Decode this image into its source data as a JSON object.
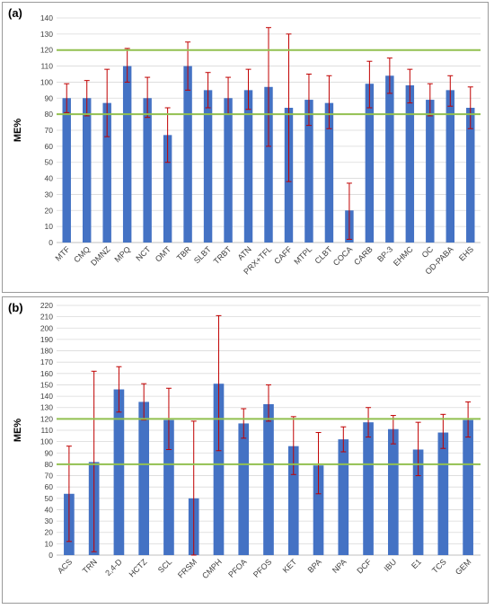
{
  "chart_data": [
    {
      "type": "bar",
      "panel_label": "(a)",
      "ylabel": "ME%",
      "ylim": [
        0,
        140
      ],
      "ytick_step": 10,
      "reference_lines": [
        80,
        120
      ],
      "categories": [
        "MTF",
        "CMQ",
        "DMNZ",
        "MPQ",
        "NCT",
        "OMT",
        "TBR",
        "SLBT",
        "TRBT",
        "ATN",
        "PRX+TFL",
        "CAFF",
        "MTPL",
        "CLBT",
        "COCA",
        "CARB",
        "BP-3",
        "EHMC",
        "OC",
        "OD-PABA",
        "EHS"
      ],
      "values": [
        90,
        90,
        87,
        110,
        90,
        67,
        110,
        95,
        90,
        95,
        97,
        84,
        89,
        87,
        20,
        99,
        104,
        98,
        89,
        95,
        84
      ],
      "error_bars": [
        [
          81,
          99
        ],
        [
          79,
          101
        ],
        [
          66,
          108
        ],
        [
          100,
          121
        ],
        [
          78,
          103
        ],
        [
          50,
          84
        ],
        [
          95,
          125
        ],
        [
          84,
          106
        ],
        [
          80,
          103
        ],
        [
          83,
          108
        ],
        [
          60,
          134
        ],
        [
          38,
          130
        ],
        [
          73,
          105
        ],
        [
          71,
          104
        ],
        [
          2,
          37
        ],
        [
          84,
          113
        ],
        [
          93,
          115
        ],
        [
          87,
          108
        ],
        [
          79,
          99
        ],
        [
          85,
          104
        ],
        [
          71,
          97
        ]
      ]
    },
    {
      "type": "bar",
      "panel_label": "(b)",
      "ylabel": "ME%",
      "ylim": [
        0,
        220
      ],
      "ytick_step": 10,
      "reference_lines": [
        80,
        120
      ],
      "categories": [
        "ACS",
        "TRN",
        "2,4-D",
        "HCTZ",
        "SCL",
        "FRSM",
        "CMPH",
        "PFOA",
        "PFOS",
        "KET",
        "BPA",
        "NPA",
        "DCF",
        "IBU",
        "E1",
        "TCS",
        "GEM"
      ],
      "values": [
        54,
        82,
        146,
        135,
        119,
        50,
        151,
        116,
        133,
        96,
        79,
        102,
        117,
        111,
        93,
        108,
        119
      ],
      "error_bars": [
        [
          12,
          96
        ],
        [
          3,
          162
        ],
        [
          126,
          166
        ],
        [
          119,
          151
        ],
        [
          93,
          147
        ],
        [
          0,
          118
        ],
        [
          92,
          211
        ],
        [
          103,
          129
        ],
        [
          118,
          150
        ],
        [
          71,
          122
        ],
        [
          54,
          108
        ],
        [
          91,
          113
        ],
        [
          104,
          130
        ],
        [
          98,
          123
        ],
        [
          70,
          117
        ],
        [
          94,
          124
        ],
        [
          104,
          135
        ]
      ]
    }
  ],
  "colors": {
    "bar": "#4472c4",
    "error_bar": "#c00000",
    "reference_line": "#92c050",
    "grid": "#d9d9d9",
    "axis_text": "#404040"
  }
}
